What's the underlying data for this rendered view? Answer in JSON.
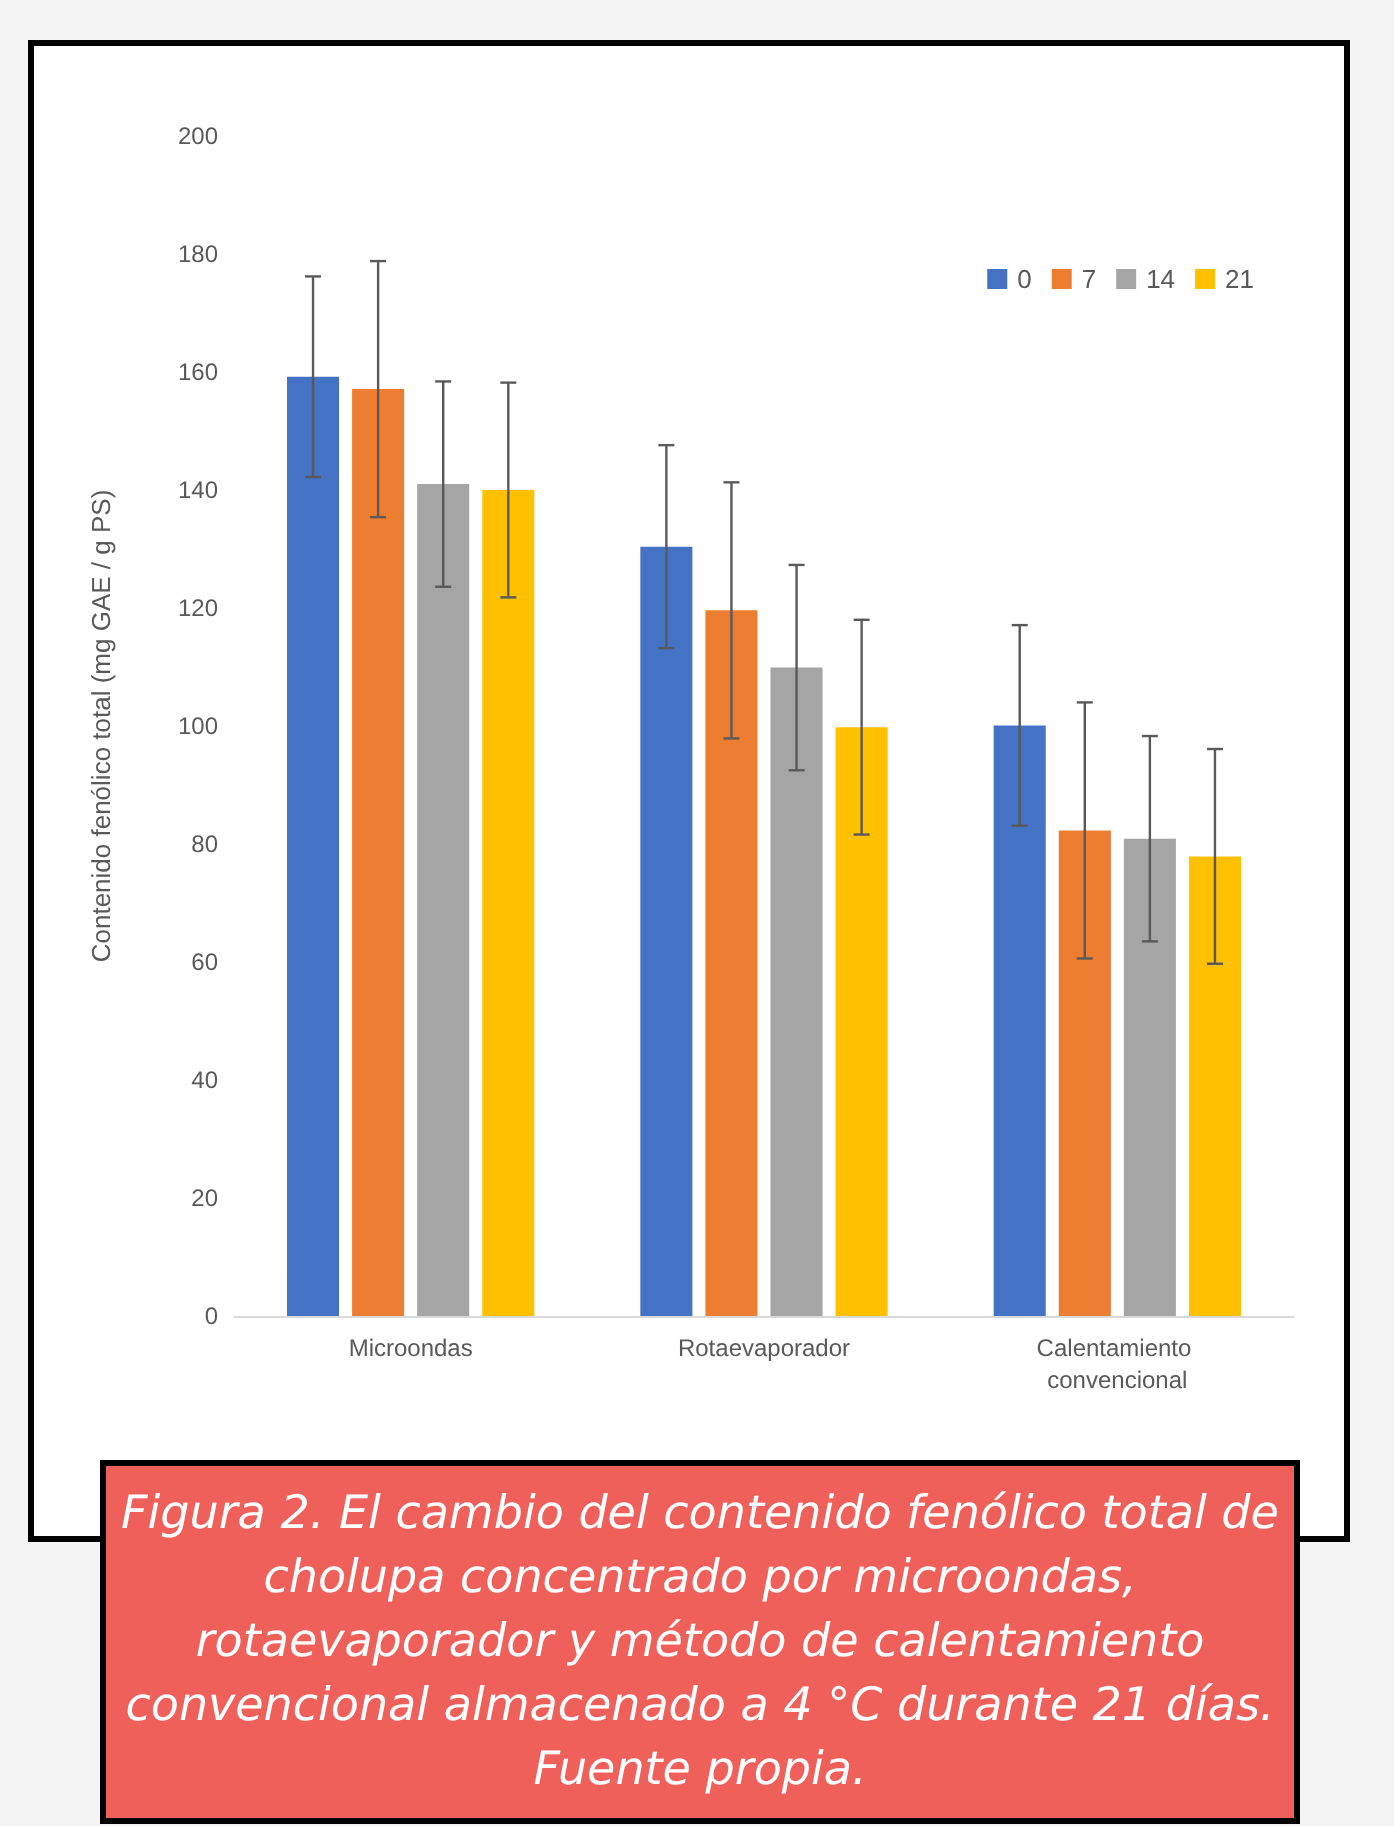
{
  "chart_data": {
    "type": "bar",
    "ylabel": "Contenido fenólico total (mg GAE / g PS)",
    "categories": [
      "Microondas",
      "Rotaevaporador",
      "Calentamiento convencional"
    ],
    "series": [
      {
        "name": "0",
        "color": "#4472c4",
        "values": [
          159.2,
          130.4,
          100.1
        ],
        "errors": [
          17,
          17.2,
          17
        ]
      },
      {
        "name": "7",
        "color": "#ed7d31",
        "values": [
          157.1,
          119.6,
          82.3
        ],
        "errors": [
          21.7,
          21.7,
          21.7
        ]
      },
      {
        "name": "14",
        "color": "#a5a5a5",
        "values": [
          141,
          109.9,
          80.9
        ],
        "errors": [
          17.4,
          17.4,
          17.4
        ]
      },
      {
        "name": "21",
        "color": "#ffc000",
        "values": [
          140,
          99.8,
          77.9
        ],
        "errors": [
          18.2,
          18.2,
          18.2
        ]
      }
    ],
    "ylim": [
      0,
      200
    ],
    "yticks": [
      0,
      20,
      40,
      60,
      80,
      100,
      120,
      140,
      160,
      180,
      200
    ],
    "grid": false,
    "legend": "top right",
    "annotations": [
      "Figura 2. El cambio del contenido fenólico total de cholupa concentrado por microondas, rotaevaporador y método de calentamiento convencional almacenado a 4 °C durante 21 días. Fuente propia."
    ]
  }
}
